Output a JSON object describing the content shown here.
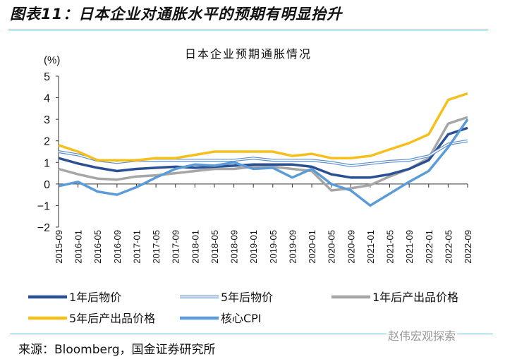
{
  "figure_title": "图表11：日本企业对通胀水平的预期有明显抬升",
  "source": "来源：Bloomberg，国金证券研究所",
  "watermark": "赵伟宏观探索",
  "chart_data": {
    "type": "line",
    "title": "日本企业预期通胀情况",
    "ylabel": "(%)",
    "ylim": [
      -2,
      5
    ],
    "yticks": [
      5,
      4,
      3,
      2,
      1,
      0,
      -1,
      -2
    ],
    "grid": false,
    "legend": "bottom",
    "x": [
      "2015-09",
      "2016-01",
      "2016-05",
      "2016-09",
      "2017-01",
      "2017-05",
      "2017-09",
      "2018-01",
      "2018-05",
      "2018-09",
      "2019-01",
      "2019-05",
      "2019-09",
      "2020-01",
      "2020-05",
      "2020-09",
      "2021-01",
      "2021-05",
      "2021-09",
      "2022-01",
      "2022-05",
      "2022-09"
    ],
    "series": [
      {
        "name": "1年后物价",
        "color": "#2a4f94",
        "style": "solid",
        "values": [
          1.2,
          0.95,
          0.75,
          0.6,
          0.7,
          0.75,
          0.8,
          0.75,
          0.8,
          0.85,
          0.9,
          0.9,
          0.9,
          0.8,
          0.45,
          0.3,
          0.3,
          0.45,
          0.7,
          1.1,
          2.3,
          2.6
        ]
      },
      {
        "name": "5年后物价",
        "color": "#5b8fd0",
        "style": "double",
        "values": [
          1.5,
          1.35,
          1.1,
          1.0,
          1.1,
          1.1,
          1.1,
          1.1,
          1.1,
          1.1,
          1.2,
          1.1,
          1.1,
          1.1,
          1.0,
          0.85,
          0.95,
          1.05,
          1.1,
          1.3,
          1.85,
          2.0
        ]
      },
      {
        "name": "1年后产出品价格",
        "color": "#a6a6a6",
        "style": "solid",
        "values": [
          0.7,
          0.45,
          0.25,
          0.2,
          0.35,
          0.4,
          0.5,
          0.6,
          0.7,
          0.7,
          0.8,
          0.8,
          0.7,
          0.6,
          -0.3,
          -0.2,
          -0.05,
          0.35,
          0.7,
          1.2,
          2.8,
          3.1
        ]
      },
      {
        "name": "5年后产出品价格",
        "color": "#f5c01b",
        "style": "solid",
        "values": [
          1.8,
          1.5,
          1.1,
          1.1,
          1.1,
          1.2,
          1.2,
          1.35,
          1.5,
          1.5,
          1.5,
          1.5,
          1.3,
          1.4,
          1.2,
          1.2,
          1.3,
          1.6,
          1.9,
          2.3,
          3.9,
          4.2
        ]
      },
      {
        "name": "核心CPI",
        "color": "#5a9bd8",
        "style": "solid",
        "values": [
          -0.1,
          0.1,
          -0.35,
          -0.5,
          -0.15,
          0.3,
          0.7,
          0.9,
          0.85,
          1.0,
          0.7,
          0.75,
          0.3,
          0.7,
          0.0,
          -0.3,
          -1.0,
          -0.45,
          0.1,
          0.6,
          1.7,
          3.0
        ]
      }
    ]
  }
}
